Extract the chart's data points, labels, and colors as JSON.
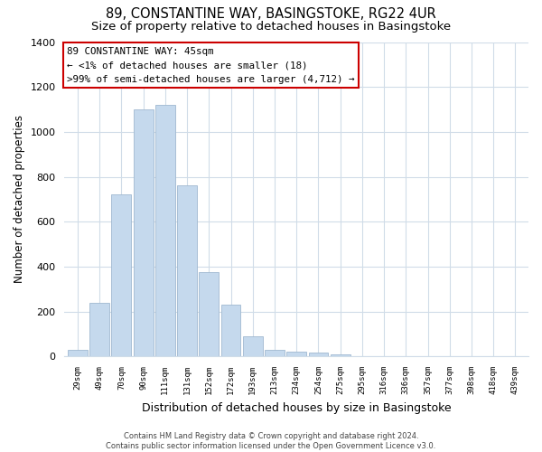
{
  "title": "89, CONSTANTINE WAY, BASINGSTOKE, RG22 4UR",
  "subtitle": "Size of property relative to detached houses in Basingstoke",
  "xlabel": "Distribution of detached houses by size in Basingstoke",
  "ylabel": "Number of detached properties",
  "bar_labels": [
    "29sqm",
    "49sqm",
    "70sqm",
    "90sqm",
    "111sqm",
    "131sqm",
    "152sqm",
    "172sqm",
    "193sqm",
    "213sqm",
    "234sqm",
    "254sqm",
    "275sqm",
    "295sqm",
    "316sqm",
    "336sqm",
    "357sqm",
    "377sqm",
    "398sqm",
    "418sqm",
    "439sqm"
  ],
  "bar_values": [
    30,
    240,
    720,
    1100,
    1120,
    760,
    375,
    230,
    90,
    30,
    20,
    15,
    10,
    0,
    0,
    0,
    0,
    0,
    0,
    0,
    0
  ],
  "bar_color": "#c5d9ed",
  "bar_edge_color": "#a0b8d0",
  "annotation_line1": "89 CONSTANTINE WAY: 45sqm",
  "annotation_line2": "← <1% of detached houses are smaller (18)",
  "annotation_line3": ">99% of semi-detached houses are larger (4,712) →",
  "annotation_box_edge_color": "#cc0000",
  "annotation_box_face_color": "#ffffff",
  "ylim": [
    0,
    1400
  ],
  "yticks": [
    0,
    200,
    400,
    600,
    800,
    1000,
    1200,
    1400
  ],
  "title_fontsize": 10.5,
  "subtitle_fontsize": 9.5,
  "xlabel_fontsize": 9,
  "ylabel_fontsize": 8.5,
  "footer_text": "Contains HM Land Registry data © Crown copyright and database right 2024.\nContains public sector information licensed under the Open Government Licence v3.0.",
  "grid_color": "#d0dce8",
  "bg_color": "#ffffff"
}
